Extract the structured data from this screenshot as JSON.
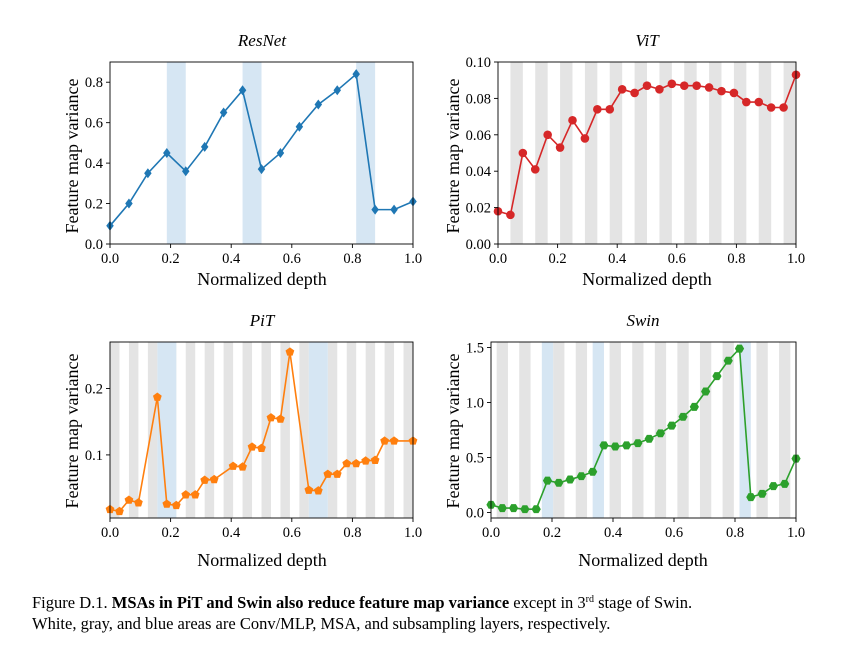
{
  "caption": {
    "label": "Figure D.1.",
    "bold": "MSAs in PiT and Swin also reduce feature map variance",
    "rest1": "except in 3",
    "sup": "rd",
    "rest2": "stage of Swin.",
    "line2": "White, gray, and blue areas are Conv/MLP, MSA, and subsampling layers, respectively."
  },
  "chart_data": [
    {
      "type": "line",
      "title": "ResNet",
      "xlabel": "Normalized depth",
      "ylabel": "Feature map variance",
      "xlim": [
        0,
        1.0
      ],
      "ylim": [
        0,
        0.9
      ],
      "xticks": [
        "0.0",
        "0.2",
        "0.4",
        "0.6",
        "0.8",
        "1.0"
      ],
      "yticks": [
        "0.0",
        "0.2",
        "0.4",
        "0.6",
        "0.8"
      ],
      "color": "#1f77b4",
      "marker": "diamond",
      "grid": false,
      "series": [
        {
          "x": [
            0.0,
            0.0625,
            0.125,
            0.1875,
            0.25,
            0.3125,
            0.375,
            0.4375,
            0.5,
            0.5625,
            0.625,
            0.6875,
            0.75,
            0.8125,
            0.875,
            0.9375,
            1.0
          ],
          "values": [
            0.09,
            0.2,
            0.35,
            0.45,
            0.36,
            0.48,
            0.65,
            0.76,
            0.37,
            0.45,
            0.58,
            0.69,
            0.76,
            0.84,
            0.17,
            0.17,
            0.21
          ]
        }
      ],
      "shaded_regions": {
        "gray": [],
        "blue": [
          [
            0.1875,
            0.25
          ],
          [
            0.4375,
            0.5
          ],
          [
            0.8125,
            0.875
          ]
        ]
      }
    },
    {
      "type": "line",
      "title": "ViT",
      "xlabel": "Normalized depth",
      "ylabel": "Feature map variance",
      "xlim": [
        0,
        1.0
      ],
      "ylim": [
        0,
        0.1
      ],
      "xticks": [
        "0.0",
        "0.2",
        "0.4",
        "0.6",
        "0.8",
        "1.0"
      ],
      "yticks": [
        "0.00",
        "0.02",
        "0.04",
        "0.06",
        "0.08",
        "0.10"
      ],
      "color": "#d62728",
      "marker": "circle",
      "grid": false,
      "series": [
        {
          "x": [
            0.0,
            0.04167,
            0.08333,
            0.125,
            0.16667,
            0.20833,
            0.25,
            0.29167,
            0.33333,
            0.375,
            0.41667,
            0.45833,
            0.5,
            0.54167,
            0.58333,
            0.625,
            0.66667,
            0.70833,
            0.75,
            0.79167,
            0.83333,
            0.875,
            0.91667,
            0.95833,
            1.0
          ],
          "values": [
            0.018,
            0.016,
            0.05,
            0.041,
            0.06,
            0.053,
            0.068,
            0.058,
            0.074,
            0.074,
            0.085,
            0.083,
            0.087,
            0.085,
            0.088,
            0.087,
            0.087,
            0.086,
            0.084,
            0.083,
            0.078,
            0.078,
            0.075,
            0.075,
            0.093
          ]
        }
      ],
      "shaded_regions": {
        "gray": [
          [
            0.04167,
            0.08333
          ],
          [
            0.125,
            0.16667
          ],
          [
            0.20833,
            0.25
          ],
          [
            0.29167,
            0.33333
          ],
          [
            0.375,
            0.41667
          ],
          [
            0.45833,
            0.5
          ],
          [
            0.54167,
            0.58333
          ],
          [
            0.625,
            0.66667
          ],
          [
            0.70833,
            0.75
          ],
          [
            0.79167,
            0.83333
          ],
          [
            0.875,
            0.91667
          ],
          [
            0.95833,
            1.0
          ]
        ],
        "blue": []
      }
    },
    {
      "type": "line",
      "title": "PiT",
      "xlabel": "Normalized depth",
      "ylabel": "Feature map variance",
      "xlim": [
        0,
        1.0
      ],
      "ylim": [
        0.005,
        0.27
      ],
      "xticks": [
        "0.0",
        "0.2",
        "0.4",
        "0.6",
        "0.8",
        "1.0"
      ],
      "yticks": [
        "0.1",
        "0.2"
      ],
      "color": "#ff7f0e",
      "marker": "pentagon",
      "grid": false,
      "series": [
        {
          "x": [
            0.0,
            0.03125,
            0.0625,
            0.09375,
            0.15625,
            0.1875,
            0.21875,
            0.25,
            0.28125,
            0.3125,
            0.34375,
            0.40625,
            0.4375,
            0.46875,
            0.5,
            0.53125,
            0.5625,
            0.59375,
            0.65625,
            0.6875,
            0.71875,
            0.75,
            0.78125,
            0.8125,
            0.84375,
            0.875,
            0.90625,
            0.9375,
            1.0
          ],
          "values": [
            0.018,
            0.015,
            0.032,
            0.028,
            0.187,
            0.026,
            0.024,
            0.04,
            0.04,
            0.062,
            0.063,
            0.083,
            0.082,
            0.112,
            0.11,
            0.156,
            0.154,
            0.255,
            0.047,
            0.046,
            0.071,
            0.071,
            0.087,
            0.087,
            0.091,
            0.092,
            0.121,
            0.121,
            0.121
          ]
        }
      ],
      "shaded_regions": {
        "gray": [
          [
            0.0,
            0.03125
          ],
          [
            0.0625,
            0.09375
          ],
          [
            0.125,
            0.15625
          ],
          [
            0.1875,
            0.21875
          ],
          [
            0.25,
            0.28125
          ],
          [
            0.3125,
            0.34375
          ],
          [
            0.375,
            0.40625
          ],
          [
            0.4375,
            0.46875
          ],
          [
            0.5,
            0.53125
          ],
          [
            0.5625,
            0.59375
          ],
          [
            0.625,
            0.65625
          ],
          [
            0.71875,
            0.75
          ],
          [
            0.78125,
            0.8125
          ],
          [
            0.84375,
            0.875
          ],
          [
            0.90625,
            0.9375
          ],
          [
            0.96875,
            1.0
          ]
        ],
        "blue": [
          [
            0.15625,
            0.21875
          ],
          [
            0.65625,
            0.71875
          ]
        ]
      }
    },
    {
      "type": "line",
      "title": "Swin",
      "xlabel": "Normalized depth",
      "ylabel": "Feature map variance",
      "xlim": [
        0,
        1.0
      ],
      "ylim": [
        -0.05,
        1.55
      ],
      "xticks": [
        "0.0",
        "0.2",
        "0.4",
        "0.6",
        "0.8",
        "1.0"
      ],
      "yticks": [
        "0.0",
        "0.5",
        "1.0",
        "1.5"
      ],
      "color": "#2ca02c",
      "marker": "hexagon",
      "grid": false,
      "series": [
        {
          "x": [
            0.0,
            0.03704,
            0.07407,
            0.11111,
            0.14815,
            0.18519,
            0.22222,
            0.25926,
            0.2963,
            0.33333,
            0.37037,
            0.40741,
            0.44444,
            0.48148,
            0.51852,
            0.55556,
            0.59259,
            0.62963,
            0.66667,
            0.7037,
            0.74074,
            0.77778,
            0.81481,
            0.85185,
            0.88889,
            0.92593,
            0.96296,
            1.0
          ],
          "values": [
            0.07,
            0.04,
            0.04,
            0.03,
            0.03,
            0.29,
            0.27,
            0.3,
            0.33,
            0.37,
            0.61,
            0.6,
            0.61,
            0.63,
            0.67,
            0.72,
            0.79,
            0.87,
            0.96,
            1.1,
            1.24,
            1.38,
            1.49,
            0.14,
            0.17,
            0.24,
            0.26,
            0.49
          ]
        }
      ],
      "shaded_regions": {
        "gray": [
          [
            0.01852,
            0.05556
          ],
          [
            0.09259,
            0.12963
          ],
          [
            0.2037,
            0.24074
          ],
          [
            0.27778,
            0.31481
          ],
          [
            0.38889,
            0.42593
          ],
          [
            0.46296,
            0.5
          ],
          [
            0.53704,
            0.57407
          ],
          [
            0.61111,
            0.64815
          ],
          [
            0.68519,
            0.72222
          ],
          [
            0.75926,
            0.7963
          ],
          [
            0.87037,
            0.90741
          ],
          [
            0.94444,
            0.98148
          ]
        ],
        "blue": [
          [
            0.16667,
            0.2037
          ],
          [
            0.33333,
            0.37037
          ],
          [
            0.81481,
            0.85185
          ]
        ]
      }
    }
  ]
}
